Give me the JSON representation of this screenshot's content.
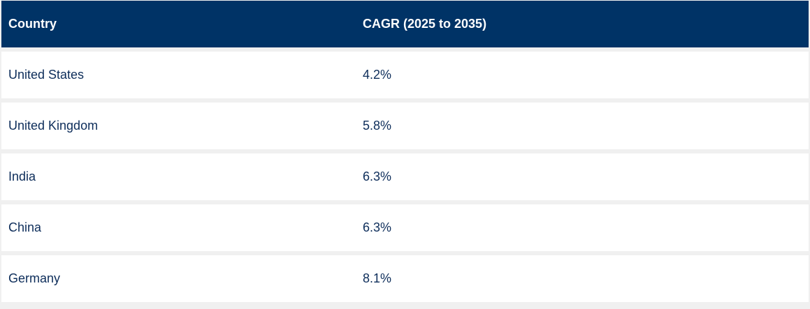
{
  "table": {
    "headers": [
      "Country",
      "CAGR (2025 to 2035)"
    ],
    "rows": [
      {
        "country": "United States",
        "cagr": "4.2%"
      },
      {
        "country": "United Kingdom",
        "cagr": "5.8%"
      },
      {
        "country": "India",
        "cagr": "6.3%"
      },
      {
        "country": "China",
        "cagr": "6.3%"
      },
      {
        "country": "Germany",
        "cagr": "8.1%"
      }
    ]
  },
  "colors": {
    "header_bg": "#003366",
    "header_text": "#ffffff",
    "body_text": "#0d2d5a",
    "row_bg": "#ffffff",
    "separator": "#f0f0f0"
  }
}
